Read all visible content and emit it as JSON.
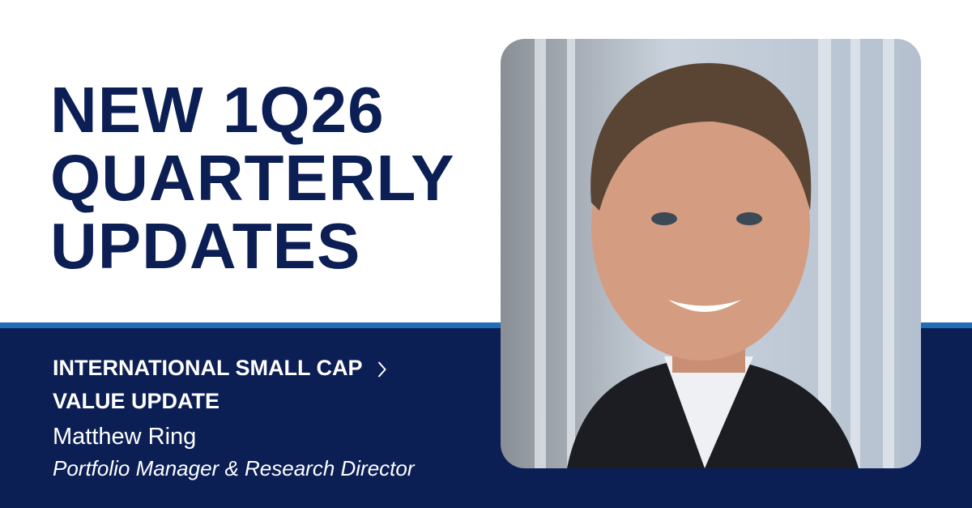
{
  "headline": {
    "lines": [
      "NEW 1Q26",
      "QUARTERLY",
      "UPDATES"
    ]
  },
  "link": {
    "lines": [
      "INTERNATIONAL SMALL CAP",
      "VALUE UPDATE"
    ]
  },
  "person": {
    "name": "Matthew Ring",
    "role": "Portfolio Manager & Research Director"
  }
}
